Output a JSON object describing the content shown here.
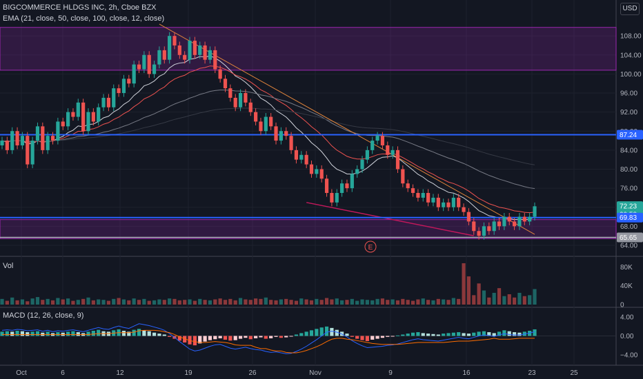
{
  "header": {
    "title": "BIGCOMMERCE HLDGS INC, 2h, Cboe BZX",
    "ema_label": "EMA (21, close, 50, close, 100, close, 12, close)",
    "currency": "USD",
    "vol_label": "Vol",
    "macd_label": "MACD (12, 26, close, 9)"
  },
  "colors": {
    "up": "#26a69a",
    "down": "#ef5350",
    "zone": "#9c27b0",
    "hline": "#2962ff",
    "trend": "#e0843b"
  },
  "chart_data": {
    "type": "candlestick",
    "title": "BIGCOMMERCE HLDGS INC, 2h, Cboe BZX",
    "x_ticks": [
      "Oct",
      "6",
      "12",
      "19",
      "26",
      "Nov",
      "9",
      "16",
      "23",
      "25"
    ],
    "price_ticks": [
      64,
      68,
      72,
      76,
      80,
      84,
      88,
      92,
      96,
      100,
      104,
      108
    ],
    "price_ylim": [
      62.4,
      111.5
    ],
    "price_labels": [
      {
        "text": "87.24",
        "value": 87.24,
        "color": "#2962ff"
      },
      {
        "text": "72.23",
        "value": 72.23,
        "color": "#26a69a"
      },
      {
        "text": "20:58",
        "value": 70.5,
        "color": "#26a69a"
      },
      {
        "text": "69.83",
        "value": 69.83,
        "color": "#2962ff"
      },
      {
        "text": "65.65",
        "value": 65.65,
        "color": "#9598a1"
      }
    ],
    "zones": [
      [
        100.8,
        109.8
      ],
      [
        65.4,
        69.4
      ]
    ],
    "horizontal_lines": [
      87.24,
      69.83,
      65.65
    ],
    "earnings_marker": "E",
    "close": [
      86,
      84,
      88,
      85,
      87,
      81,
      86,
      89,
      84,
      87,
      86,
      90,
      89,
      92,
      91,
      94,
      88,
      92,
      90,
      93,
      95,
      93,
      97,
      96,
      99,
      98,
      102,
      101,
      104,
      100,
      102,
      105,
      103,
      108,
      106,
      104,
      103,
      107,
      104,
      106,
      103,
      105,
      101,
      99,
      97,
      95,
      93,
      96,
      94,
      92,
      90,
      88,
      91,
      89,
      86,
      88,
      87,
      84,
      82,
      83,
      81,
      79,
      80,
      78,
      75,
      73,
      75,
      77,
      76,
      79,
      80,
      82,
      84,
      86,
      87,
      85,
      83,
      84,
      80,
      77,
      76,
      75,
      74,
      75,
      73,
      74,
      72,
      73,
      72,
      74,
      72,
      71,
      69,
      67,
      66,
      68,
      67,
      69,
      68,
      70,
      69,
      68,
      70,
      69,
      70,
      72.2
    ],
    "volume_ticks": [
      "80K",
      "40K",
      "0"
    ],
    "volume": [
      12,
      8,
      15,
      9,
      11,
      7,
      13,
      16,
      10,
      12,
      9,
      14,
      11,
      13,
      8,
      10,
      12,
      15,
      9,
      11,
      10,
      8,
      12,
      14,
      11,
      9,
      13,
      10,
      12,
      8,
      9,
      11,
      10,
      13,
      12,
      9,
      10,
      11,
      8,
      12,
      10,
      9,
      11,
      13,
      10,
      12,
      9,
      14,
      11,
      10,
      13,
      12,
      15,
      10,
      9,
      11,
      12,
      10,
      8,
      13,
      11,
      9,
      12,
      10,
      14,
      11,
      13,
      9,
      10,
      12,
      8,
      11,
      10,
      9,
      12,
      13,
      10,
      11,
      9,
      12,
      10,
      8,
      11,
      13,
      10,
      9,
      12,
      11,
      10,
      14,
      12,
      88,
      60,
      20,
      45,
      30,
      15,
      25,
      35,
      18,
      22,
      15,
      25,
      18,
      20,
      33
    ],
    "macd_ticks": [
      "4.00",
      "0.00",
      "−4.00"
    ],
    "macd_ylim": [
      -5.5,
      5.5
    ],
    "macd_hist": [
      0.9,
      1.0,
      0.9,
      1.1,
      1.0,
      0.8,
      0.9,
      1.0,
      0.7,
      0.9,
      0.6,
      0.8,
      0.7,
      0.9,
      1.0,
      0.8,
      0.6,
      0.9,
      1.1,
      1.3,
      1.0,
      0.9,
      1.2,
      1.4,
      1.1,
      0.9,
      1.3,
      1.5,
      1.2,
      1.0,
      0.7,
      0.5,
      0.3,
      -0.2,
      -0.6,
      -1.0,
      -1.4,
      -1.8,
      -2.0,
      -1.6,
      -1.2,
      -0.9,
      -0.7,
      -0.5,
      -0.8,
      -1.0,
      -0.9,
      -0.6,
      -0.4,
      -0.7,
      -0.5,
      -0.3,
      -0.6,
      -0.5,
      -0.2,
      -0.4,
      -0.3,
      -0.1,
      0.3,
      0.6,
      0.9,
      1.2,
      1.5,
      1.8,
      2.0,
      1.7,
      1.3,
      0.9,
      0.5,
      -0.2,
      -0.6,
      -0.9,
      -1.1,
      -0.8,
      -0.6,
      -0.4,
      -0.2,
      -0.1,
      0.1,
      0.3,
      0.5,
      0.7,
      0.8,
      0.6,
      0.5,
      0.4,
      0.3,
      0.5,
      0.6,
      0.7,
      0.8,
      0.6,
      0.5,
      0.7,
      0.9,
      1.0,
      0.8,
      0.6,
      0.9,
      1.2,
      1.0,
      0.8,
      0.7,
      0.9,
      1.1,
      1.4
    ],
    "macd_line": [
      1.2,
      1.3,
      1.2,
      1.4,
      1.3,
      1.1,
      1.2,
      1.3,
      1.0,
      1.2,
      0.9,
      1.1,
      1.0,
      1.2,
      1.3,
      1.1,
      0.9,
      1.2,
      1.5,
      1.8,
      1.5,
      1.4,
      1.8,
      2.1,
      1.8,
      1.6,
      2.1,
      2.6,
      2.4,
      2.2,
      1.9,
      1.6,
      1.2,
      0.5,
      -0.3,
      -1.2,
      -2.0,
      -2.8,
      -3.2,
      -3.0,
      -2.6,
      -2.2,
      -1.9,
      -1.8,
      -2.2,
      -2.6,
      -2.8,
      -2.6,
      -2.4,
      -2.7,
      -2.9,
      -3.0,
      -3.3,
      -3.5,
      -3.4,
      -3.6,
      -3.8,
      -3.7,
      -3.3,
      -2.8,
      -2.2,
      -1.5,
      -0.8,
      0.0,
      0.8,
      1.0,
      0.8,
      0.4,
      -0.2,
      -1.0,
      -1.6,
      -2.1,
      -2.5,
      -2.4,
      -2.3,
      -2.2,
      -2.0,
      -1.9,
      -1.7,
      -1.4,
      -1.1,
      -0.8,
      -0.6,
      -0.8,
      -0.9,
      -1.0,
      -1.1,
      -0.9,
      -0.7,
      -0.5,
      -0.3,
      -0.5,
      -0.6,
      -0.3,
      0.0,
      0.2,
      0.1,
      -0.1,
      0.2,
      0.5,
      0.3,
      0.2,
      0.2,
      0.4,
      0.6,
      0.9
    ],
    "signal_line": [
      0.3,
      0.3,
      0.3,
      0.3,
      0.3,
      0.3,
      0.3,
      0.3,
      0.3,
      0.3,
      0.3,
      0.3,
      0.3,
      0.3,
      0.3,
      0.3,
      0.3,
      0.3,
      0.4,
      0.5,
      0.5,
      0.5,
      0.6,
      0.7,
      0.7,
      0.7,
      0.8,
      1.1,
      1.2,
      1.2,
      1.2,
      1.1,
      0.9,
      0.7,
      0.3,
      -0.2,
      -0.6,
      -1.0,
      -1.2,
      -1.4,
      -1.4,
      -1.3,
      -1.2,
      -1.3,
      -1.4,
      -1.6,
      -1.9,
      -2.0,
      -2.0,
      -2.0,
      -2.4,
      -2.7,
      -2.7,
      -3.0,
      -3.2,
      -3.2,
      -3.5,
      -3.6,
      -3.6,
      -3.4,
      -3.1,
      -2.7,
      -2.3,
      -1.8,
      -1.2,
      -0.7,
      -0.5,
      -0.5,
      -0.7,
      -0.8,
      -1.0,
      -1.2,
      -1.4,
      -1.6,
      -1.7,
      -1.8,
      -1.8,
      -1.8,
      -1.8,
      -1.7,
      -1.6,
      -1.5,
      -1.4,
      -1.4,
      -1.4,
      -1.4,
      -1.4,
      -1.4,
      -1.3,
      -1.2,
      -1.1,
      -1.1,
      -1.1,
      -1.0,
      -0.9,
      -0.8,
      -0.7,
      -0.5,
      -0.7,
      -0.7,
      -0.7,
      -0.6,
      -0.5,
      -0.5,
      -0.5,
      -0.5
    ]
  }
}
